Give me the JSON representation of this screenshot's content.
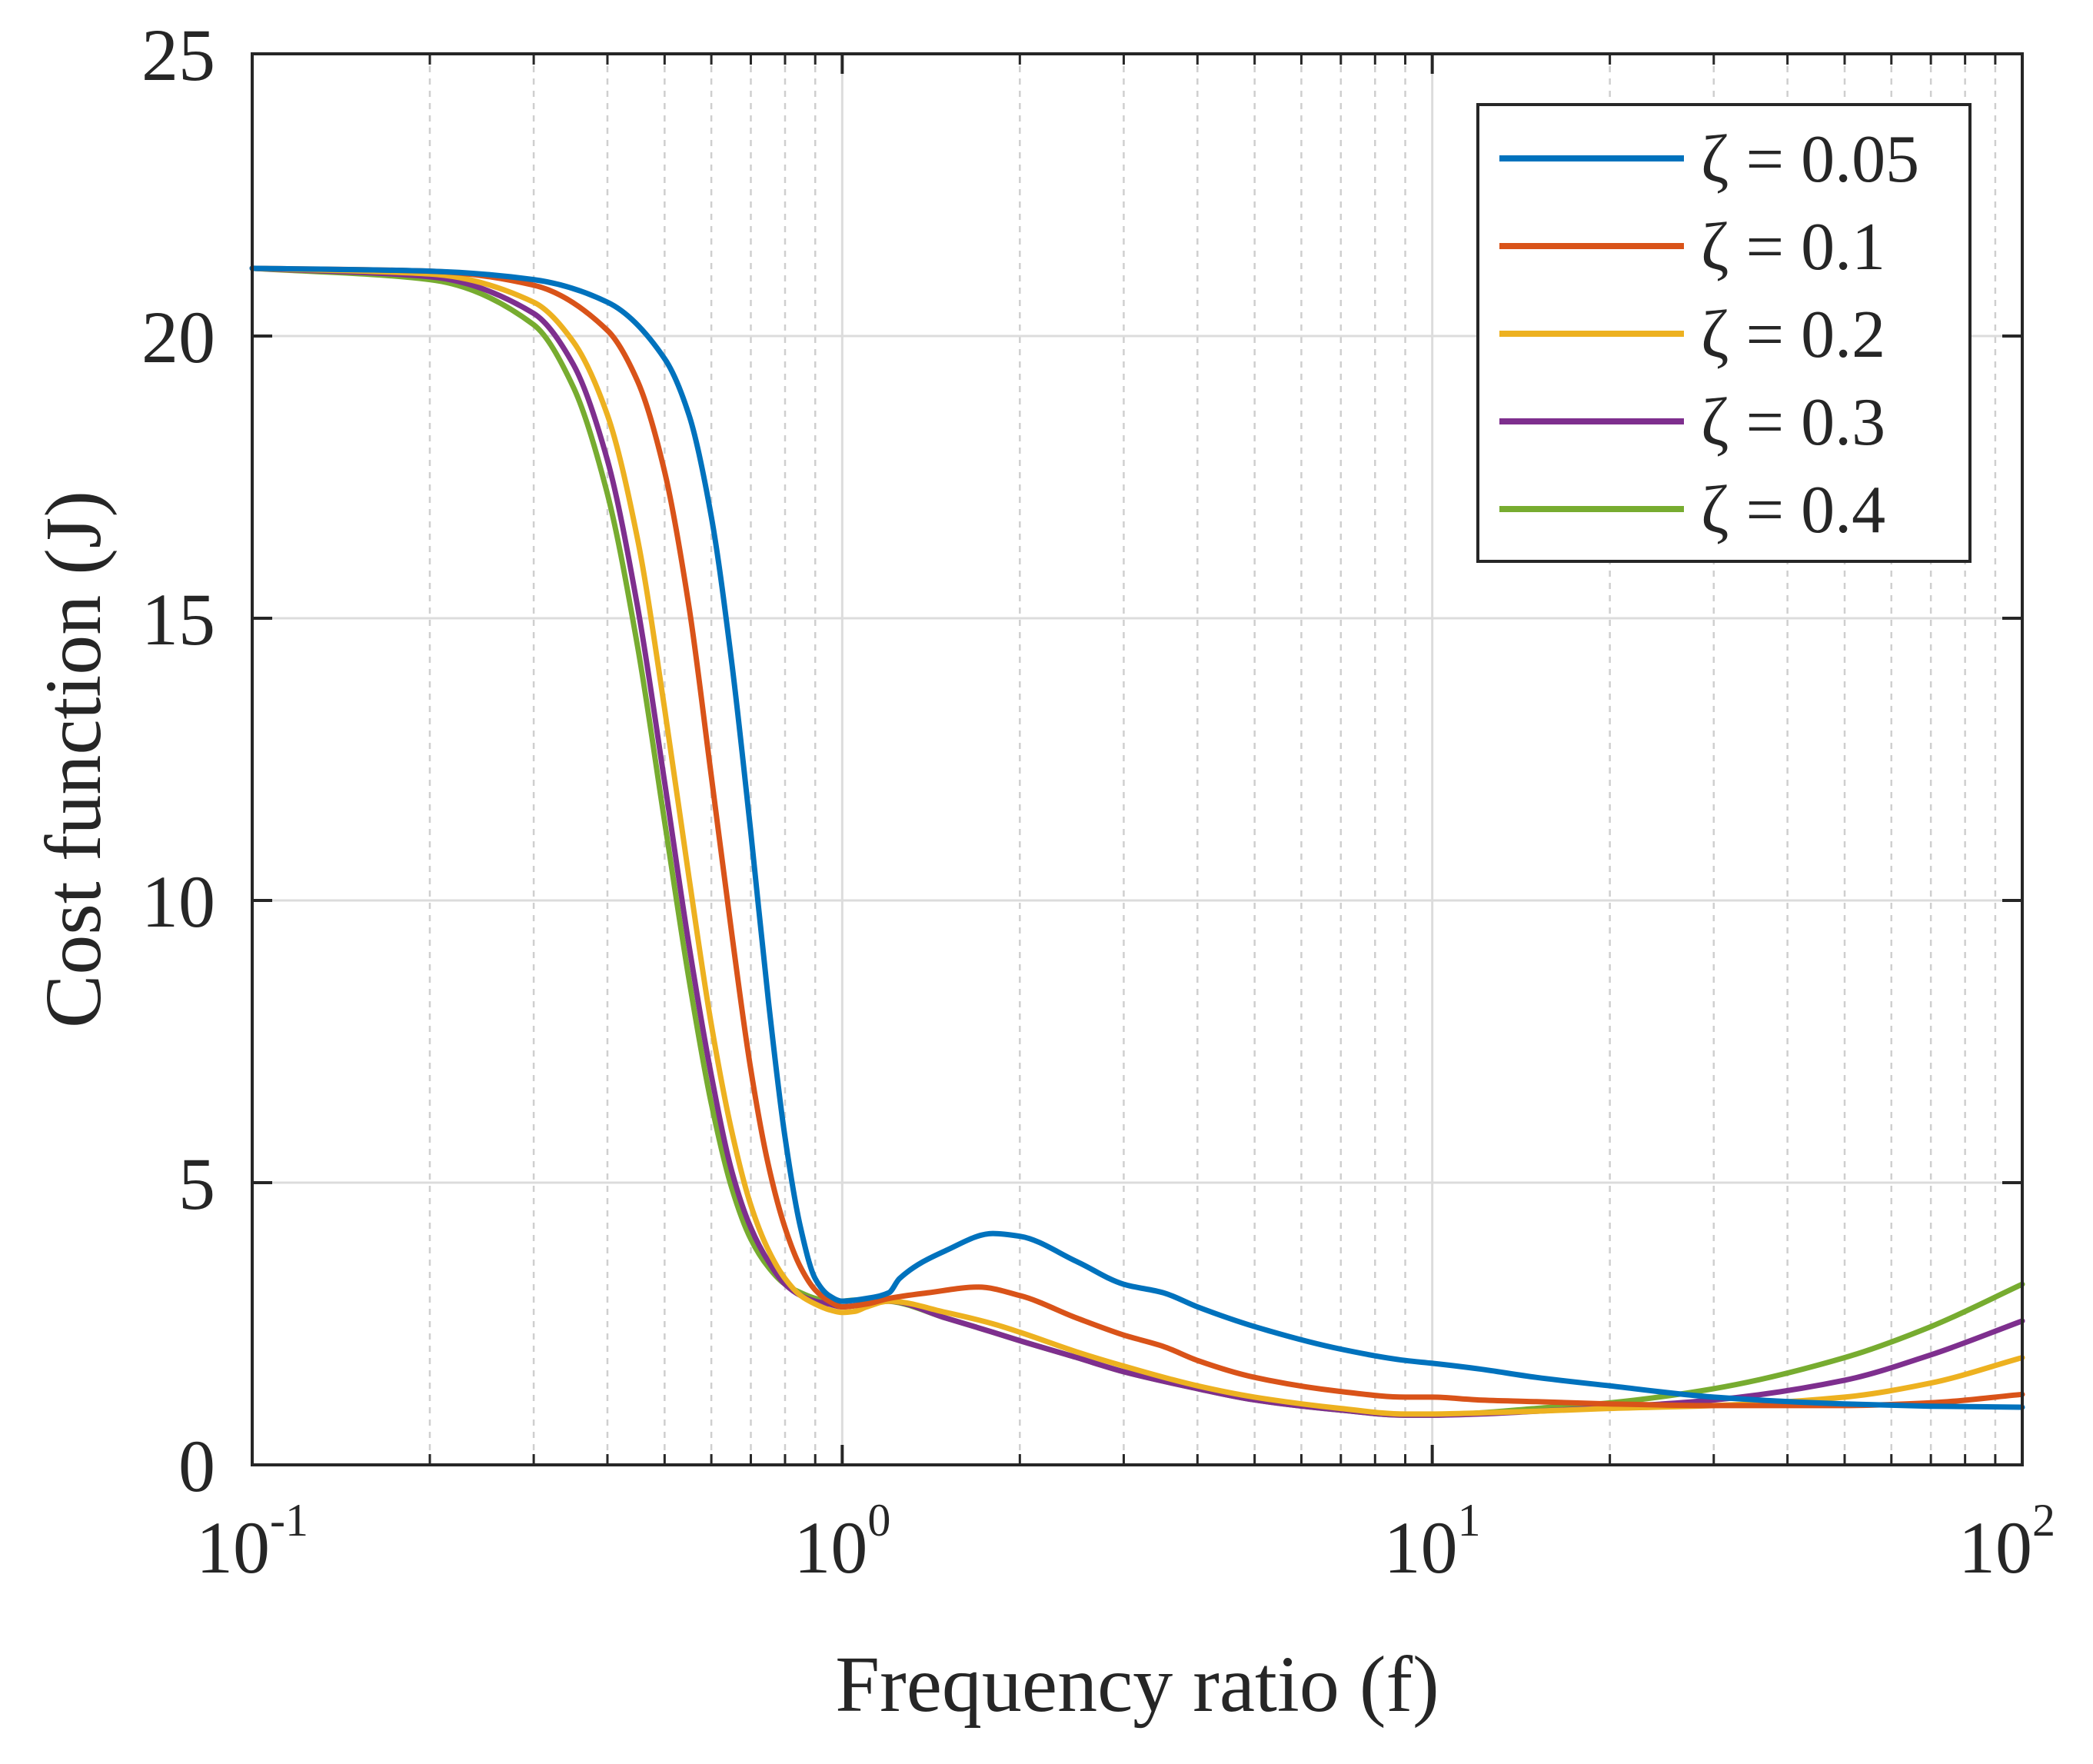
{
  "chart_data": {
    "type": "line",
    "title": "",
    "xlabel": "Frequency ratio (f)",
    "ylabel": "Cost function (J)",
    "xscale": "log",
    "xlim": [
      0.1,
      100
    ],
    "ylim": [
      0,
      25
    ],
    "grid": true,
    "legend_position": "top-right",
    "x_ticks": [
      {
        "base": "10",
        "exp": "-1"
      },
      {
        "base": "10",
        "exp": "0"
      },
      {
        "base": "10",
        "exp": "1"
      },
      {
        "base": "10",
        "exp": "2"
      }
    ],
    "y_ticks": [
      "0",
      "5",
      "10",
      "15",
      "20",
      "25"
    ],
    "series": [
      {
        "name": "ζ = 0.05",
        "color": "#0072BD",
        "x": [
          0.1,
          0.2,
          0.3,
          0.4,
          0.5,
          0.55,
          0.6,
          0.65,
          0.7,
          0.75,
          0.8,
          0.85,
          0.9,
          0.95,
          1.0,
          1.1,
          1.2,
          1.25,
          1.5,
          1.8,
          2.0,
          2.5,
          3.0,
          3.5,
          4.0,
          5.0,
          7.0,
          9.0,
          10.0,
          12.0,
          15.0,
          20.0,
          30.0,
          50.0,
          70.0,
          100.0
        ],
        "values": [
          21.2,
          21.15,
          21.0,
          20.6,
          19.6,
          18.6,
          16.8,
          14.2,
          11.2,
          8.2,
          5.8,
          4.2,
          3.3,
          3.0,
          2.9,
          2.95,
          3.05,
          3.3,
          3.8,
          4.1,
          4.05,
          3.6,
          3.2,
          3.05,
          2.8,
          2.45,
          2.05,
          1.85,
          1.8,
          1.7,
          1.55,
          1.4,
          1.2,
          1.08,
          1.04,
          1.02
        ]
      },
      {
        "name": "ζ = 0.1",
        "color": "#D95319",
        "x": [
          0.1,
          0.2,
          0.3,
          0.4,
          0.45,
          0.5,
          0.55,
          0.6,
          0.65,
          0.7,
          0.75,
          0.8,
          0.85,
          0.9,
          0.95,
          1.0,
          1.1,
          1.2,
          1.4,
          1.7,
          2.0,
          2.5,
          3.0,
          3.5,
          4.0,
          5.0,
          7.0,
          9.0,
          10.0,
          12.0,
          15.0,
          20.0,
          30.0,
          50.0,
          70.0,
          100.0
        ],
        "values": [
          21.2,
          21.15,
          20.9,
          20.1,
          19.2,
          17.6,
          15.2,
          12.2,
          9.4,
          7.0,
          5.3,
          4.2,
          3.5,
          3.1,
          2.9,
          2.8,
          2.85,
          2.95,
          3.05,
          3.15,
          3.0,
          2.6,
          2.3,
          2.1,
          1.85,
          1.55,
          1.3,
          1.2,
          1.2,
          1.15,
          1.12,
          1.08,
          1.05,
          1.05,
          1.1,
          1.25
        ]
      },
      {
        "name": "ζ = 0.2",
        "color": "#EDB120",
        "x": [
          0.1,
          0.2,
          0.3,
          0.35,
          0.4,
          0.45,
          0.5,
          0.55,
          0.6,
          0.65,
          0.7,
          0.75,
          0.8,
          0.85,
          0.9,
          0.95,
          1.0,
          1.05,
          1.1,
          1.2,
          1.5,
          1.8,
          2.0,
          2.5,
          3.0,
          4.0,
          5.0,
          7.0,
          9.0,
          10.0,
          12.0,
          15.0,
          20.0,
          30.0,
          50.0,
          70.0,
          100.0
        ],
        "values": [
          21.2,
          21.1,
          20.6,
          19.9,
          18.6,
          16.4,
          13.4,
          10.4,
          7.8,
          5.9,
          4.6,
          3.8,
          3.3,
          3.0,
          2.85,
          2.75,
          2.7,
          2.72,
          2.8,
          2.9,
          2.7,
          2.5,
          2.35,
          2.0,
          1.75,
          1.4,
          1.2,
          1.0,
          0.9,
          0.9,
          0.92,
          0.95,
          1.0,
          1.05,
          1.2,
          1.45,
          1.9
        ]
      },
      {
        "name": "ζ = 0.3",
        "color": "#7E2F8E",
        "x": [
          0.1,
          0.2,
          0.3,
          0.35,
          0.4,
          0.45,
          0.5,
          0.55,
          0.6,
          0.65,
          0.7,
          0.75,
          0.8,
          0.85,
          0.9,
          0.95,
          1.0,
          1.05,
          1.1,
          1.2,
          1.5,
          1.8,
          2.0,
          2.5,
          3.0,
          4.0,
          5.0,
          7.0,
          9.0,
          10.0,
          12.0,
          15.0,
          20.0,
          30.0,
          50.0,
          70.0,
          100.0
        ],
        "values": [
          21.2,
          21.05,
          20.4,
          19.5,
          17.8,
          15.2,
          12.1,
          9.2,
          6.9,
          5.2,
          4.2,
          3.6,
          3.2,
          3.0,
          2.9,
          2.85,
          2.8,
          2.82,
          2.85,
          2.9,
          2.6,
          2.35,
          2.2,
          1.9,
          1.65,
          1.35,
          1.15,
          0.97,
          0.88,
          0.88,
          0.9,
          0.95,
          1.02,
          1.15,
          1.5,
          1.95,
          2.55
        ]
      },
      {
        "name": "ζ = 0.4",
        "color": "#77AC30",
        "x": [
          0.1,
          0.2,
          0.3,
          0.35,
          0.4,
          0.45,
          0.5,
          0.55,
          0.6,
          0.65,
          0.7,
          0.75,
          0.8,
          0.85,
          0.9,
          0.95,
          1.0,
          1.05,
          1.1,
          1.2,
          1.5,
          1.8,
          2.0,
          2.5,
          3.0,
          4.0,
          5.0,
          7.0,
          9.0,
          10.0,
          12.0,
          15.0,
          20.0,
          30.0,
          50.0,
          70.0,
          100.0
        ],
        "values": [
          21.2,
          21.0,
          20.2,
          19.1,
          17.2,
          14.5,
          11.4,
          8.6,
          6.4,
          4.9,
          4.0,
          3.5,
          3.2,
          3.05,
          2.95,
          2.9,
          2.9,
          2.92,
          2.92,
          2.9,
          2.6,
          2.35,
          2.2,
          1.9,
          1.65,
          1.35,
          1.15,
          0.97,
          0.88,
          0.88,
          0.92,
          1.0,
          1.1,
          1.35,
          1.9,
          2.45,
          3.2
        ]
      }
    ]
  }
}
